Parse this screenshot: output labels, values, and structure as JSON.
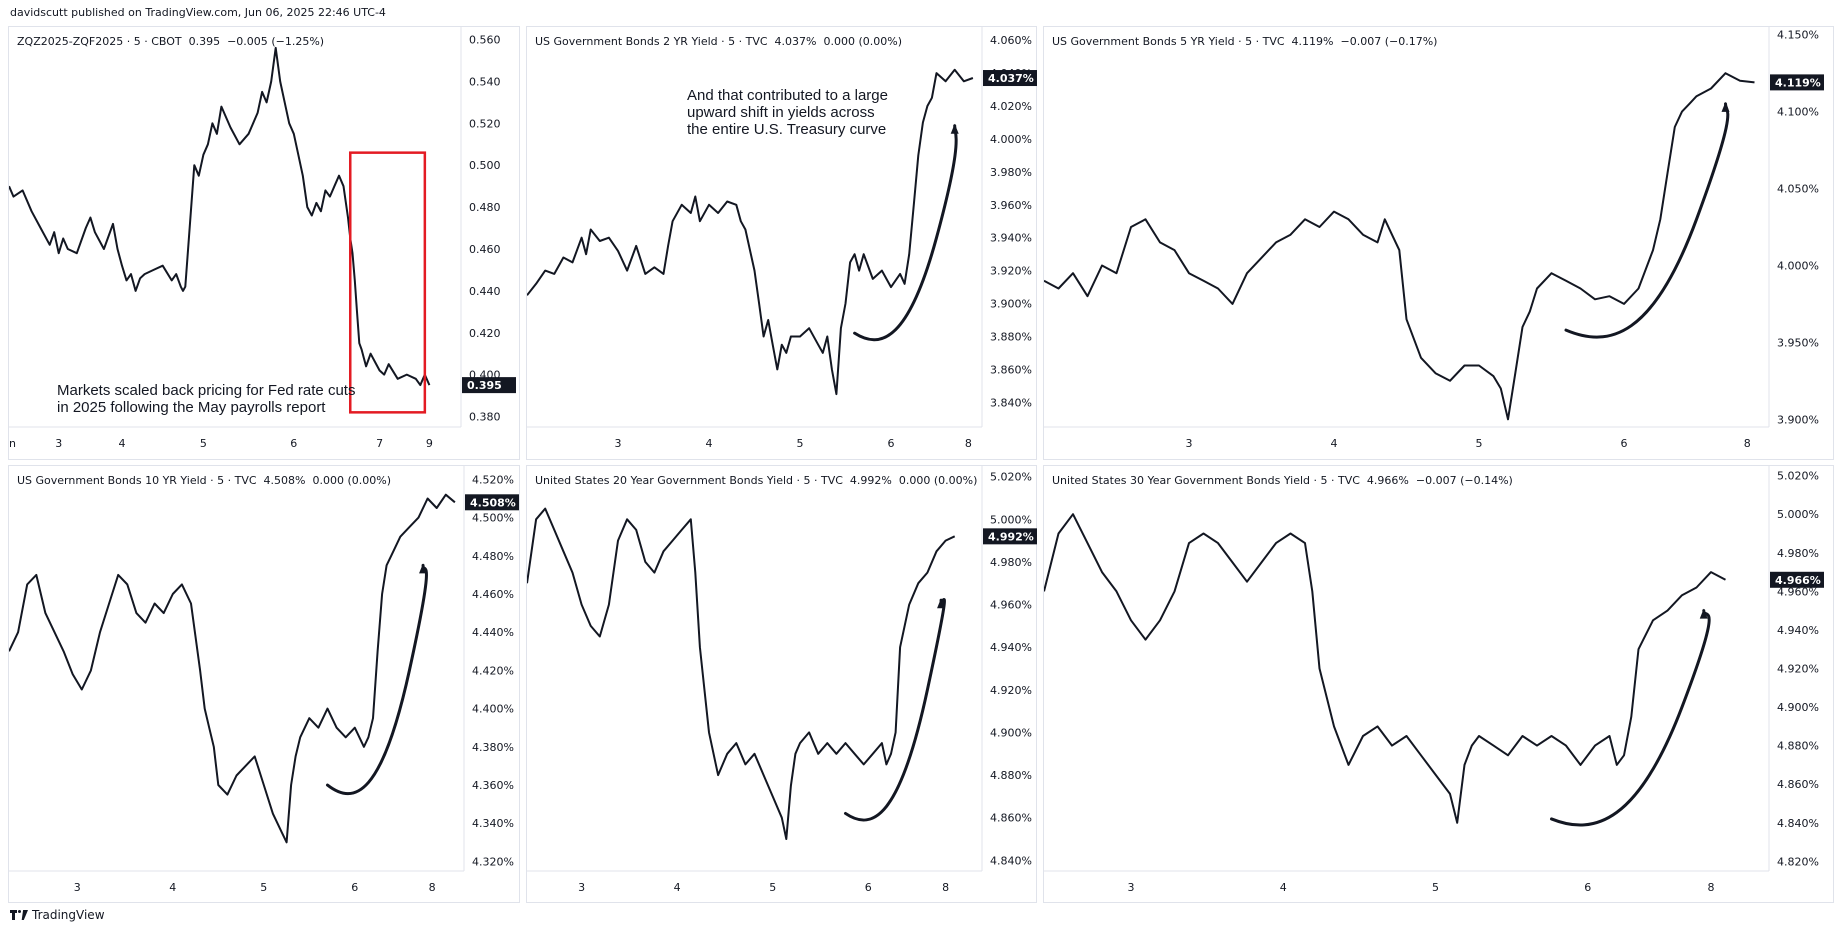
{
  "header": {
    "published": "davidscutt published on TradingView.com, Jun 06, 2025 22:46 UTC-4"
  },
  "footer": {
    "brand": "TradingView",
    "logo_icon": "tradingview-logo-icon"
  },
  "line_color": "#131722",
  "annotation_color": "#e31b23",
  "chart_data": [
    {
      "id": "zq",
      "type": "line",
      "legend": {
        "symbol": "ZQZ2025-ZQF2025",
        "interval": "5",
        "exchange": "CBOT",
        "last": "0.395",
        "change": "−0.005",
        "change_pct": "(−1.25%)"
      },
      "ylim": [
        0.375,
        0.566
      ],
      "y_ticks": [
        "0.560",
        "0.540",
        "0.520",
        "0.500",
        "0.480",
        "0.460",
        "0.440",
        "0.420",
        "0.400",
        "0.380"
      ],
      "y_tick_values": [
        0.56,
        0.54,
        0.52,
        0.5,
        0.48,
        0.46,
        0.44,
        0.42,
        0.4,
        0.38
      ],
      "x_ticks": [
        "un",
        "3",
        "4",
        "5",
        "6",
        "7",
        "9"
      ],
      "x_tick_pos": [
        0.0,
        0.11,
        0.25,
        0.43,
        0.63,
        0.82,
        0.93
      ],
      "last_label": "0.395",
      "x": [
        0,
        0.01,
        0.03,
        0.05,
        0.07,
        0.09,
        0.1,
        0.11,
        0.12,
        0.13,
        0.15,
        0.17,
        0.18,
        0.19,
        0.21,
        0.23,
        0.24,
        0.25,
        0.26,
        0.27,
        0.28,
        0.29,
        0.3,
        0.32,
        0.34,
        0.36,
        0.37,
        0.38,
        0.385,
        0.39,
        0.41,
        0.42,
        0.43,
        0.44,
        0.45,
        0.46,
        0.47,
        0.49,
        0.51,
        0.53,
        0.55,
        0.56,
        0.57,
        0.58,
        0.59,
        0.6,
        0.61,
        0.62,
        0.63,
        0.64,
        0.65,
        0.66,
        0.67,
        0.68,
        0.69,
        0.7,
        0.71,
        0.72,
        0.73,
        0.74,
        0.75,
        0.755,
        0.76,
        0.765,
        0.77,
        0.775,
        0.78,
        0.785,
        0.79,
        0.8,
        0.81,
        0.82,
        0.83,
        0.84,
        0.86,
        0.88,
        0.9,
        0.91,
        0.92,
        0.93
      ],
      "y": [
        0.49,
        0.485,
        0.488,
        0.478,
        0.47,
        0.462,
        0.468,
        0.458,
        0.465,
        0.46,
        0.458,
        0.47,
        0.475,
        0.468,
        0.46,
        0.472,
        0.46,
        0.452,
        0.445,
        0.448,
        0.44,
        0.446,
        0.448,
        0.45,
        0.452,
        0.445,
        0.448,
        0.442,
        0.44,
        0.442,
        0.5,
        0.495,
        0.505,
        0.51,
        0.52,
        0.515,
        0.528,
        0.518,
        0.51,
        0.515,
        0.525,
        0.535,
        0.53,
        0.54,
        0.556,
        0.54,
        0.53,
        0.52,
        0.515,
        0.505,
        0.495,
        0.48,
        0.476,
        0.482,
        0.478,
        0.488,
        0.485,
        0.49,
        0.495,
        0.49,
        0.475,
        0.465,
        0.458,
        0.445,
        0.43,
        0.415,
        0.412,
        0.408,
        0.404,
        0.41,
        0.406,
        0.402,
        0.4,
        0.405,
        0.398,
        0.4,
        0.398,
        0.395,
        0.4,
        0.395
      ],
      "box": {
        "x0": 0.755,
        "x1": 0.92,
        "y_top": 0.506,
        "y_bot": 0.382
      },
      "note": [
        "Markets scaled back pricing for Fed rate cuts",
        "in 2025 following the May payrolls report"
      ]
    },
    {
      "id": "us02",
      "type": "line",
      "legend": {
        "symbol": "US Government Bonds 2 YR Yield",
        "interval": "5",
        "exchange": "TVC",
        "last": "4.037%",
        "change": "0.000",
        "change_pct": "(0.00%)"
      },
      "ylim": [
        3.825,
        4.068
      ],
      "y_ticks": [
        "4.060%",
        "4.040%",
        "4.020%",
        "4.000%",
        "3.980%",
        "3.960%",
        "3.940%",
        "3.920%",
        "3.900%",
        "3.880%",
        "3.860%",
        "3.840%"
      ],
      "y_tick_values": [
        4.06,
        4.04,
        4.02,
        4.0,
        3.98,
        3.96,
        3.94,
        3.92,
        3.9,
        3.88,
        3.86,
        3.84
      ],
      "x_ticks": [
        "3",
        "4",
        "5",
        "6",
        "8"
      ],
      "x_tick_pos": [
        0.2,
        0.4,
        0.6,
        0.8,
        0.97
      ],
      "last_label": "4.037%",
      "x": [
        0,
        0.02,
        0.04,
        0.06,
        0.08,
        0.1,
        0.12,
        0.13,
        0.14,
        0.16,
        0.18,
        0.2,
        0.22,
        0.24,
        0.26,
        0.28,
        0.3,
        0.31,
        0.32,
        0.34,
        0.36,
        0.37,
        0.38,
        0.4,
        0.42,
        0.44,
        0.46,
        0.47,
        0.48,
        0.5,
        0.51,
        0.52,
        0.53,
        0.54,
        0.55,
        0.56,
        0.57,
        0.58,
        0.6,
        0.62,
        0.64,
        0.65,
        0.66,
        0.67,
        0.68,
        0.69,
        0.7,
        0.71,
        0.72,
        0.73,
        0.74,
        0.76,
        0.78,
        0.8,
        0.82,
        0.83,
        0.84,
        0.85,
        0.86,
        0.87,
        0.88,
        0.89,
        0.9,
        0.92,
        0.94,
        0.96,
        0.98
      ],
      "y": [
        3.905,
        3.912,
        3.92,
        3.918,
        3.928,
        3.925,
        3.94,
        3.93,
        3.945,
        3.938,
        3.94,
        3.932,
        3.92,
        3.935,
        3.918,
        3.922,
        3.918,
        3.935,
        3.95,
        3.96,
        3.955,
        3.965,
        3.95,
        3.96,
        3.955,
        3.962,
        3.96,
        3.95,
        3.945,
        3.92,
        3.9,
        3.88,
        3.89,
        3.875,
        3.86,
        3.875,
        3.87,
        3.88,
        3.88,
        3.885,
        3.875,
        3.87,
        3.88,
        3.86,
        3.845,
        3.885,
        3.9,
        3.925,
        3.93,
        3.92,
        3.93,
        3.915,
        3.92,
        3.91,
        3.918,
        3.912,
        3.93,
        3.96,
        3.99,
        4.01,
        4.02,
        4.025,
        4.04,
        4.035,
        4.042,
        4.035,
        4.037
      ],
      "curve": [
        [
          0.72,
          3.882
        ],
        [
          0.78,
          3.875
        ],
        [
          0.84,
          3.885
        ],
        [
          0.9,
          3.94
        ],
        [
          0.94,
          4.008
        ]
      ],
      "note": [
        "And that contributed to a large",
        "upward shift in yields across",
        "the entire U.S. Treasury curve"
      ]
    },
    {
      "id": "us05",
      "type": "line",
      "legend": {
        "symbol": "US Government Bonds 5 YR Yield",
        "interval": "5",
        "exchange": "TVC",
        "last": "4.119%",
        "change": "−0.007",
        "change_pct": "(−0.17%)"
      },
      "ylim": [
        3.895,
        4.155
      ],
      "y_ticks": [
        "4.150%",
        "4.100%",
        "4.050%",
        "4.000%",
        "3.950%",
        "3.900%"
      ],
      "y_tick_values": [
        4.15,
        4.1,
        4.05,
        4.0,
        3.95,
        3.9
      ],
      "x_ticks": [
        "3",
        "4",
        "5",
        "6",
        "8"
      ],
      "x_tick_pos": [
        0.2,
        0.4,
        0.6,
        0.8,
        0.97
      ],
      "last_label": "4.119%",
      "x": [
        0,
        0.02,
        0.04,
        0.06,
        0.08,
        0.1,
        0.12,
        0.14,
        0.16,
        0.18,
        0.2,
        0.22,
        0.24,
        0.26,
        0.28,
        0.3,
        0.32,
        0.34,
        0.36,
        0.38,
        0.4,
        0.42,
        0.44,
        0.46,
        0.47,
        0.48,
        0.49,
        0.5,
        0.52,
        0.54,
        0.56,
        0.58,
        0.6,
        0.62,
        0.63,
        0.64,
        0.65,
        0.66,
        0.67,
        0.68,
        0.7,
        0.72,
        0.74,
        0.76,
        0.78,
        0.8,
        0.82,
        0.84,
        0.85,
        0.86,
        0.87,
        0.88,
        0.89,
        0.9,
        0.92,
        0.94,
        0.96,
        0.98
      ],
      "y": [
        3.99,
        3.985,
        3.995,
        3.98,
        4.0,
        3.995,
        4.025,
        4.03,
        4.015,
        4.01,
        3.995,
        3.99,
        3.985,
        3.975,
        3.995,
        4.005,
        4.015,
        4.02,
        4.03,
        4.025,
        4.035,
        4.03,
        4.02,
        4.015,
        4.03,
        4.02,
        4.01,
        3.965,
        3.94,
        3.93,
        3.925,
        3.935,
        3.935,
        3.928,
        3.92,
        3.9,
        3.93,
        3.96,
        3.97,
        3.985,
        3.995,
        3.99,
        3.985,
        3.978,
        3.98,
        3.975,
        3.985,
        4.01,
        4.03,
        4.06,
        4.09,
        4.1,
        4.105,
        4.11,
        4.115,
        4.125,
        4.12,
        4.119
      ],
      "curve": [
        [
          0.72,
          3.958
        ],
        [
          0.78,
          3.95
        ],
        [
          0.84,
          3.96
        ],
        [
          0.9,
          4.03
        ],
        [
          0.94,
          4.105
        ]
      ]
    },
    {
      "id": "us10",
      "type": "line",
      "legend": {
        "symbol": "US Government Bonds 10 YR Yield",
        "interval": "5",
        "exchange": "TVC",
        "last": "4.508%",
        "change": "0.000",
        "change_pct": "(0.00%)"
      },
      "ylim": [
        4.315,
        4.527
      ],
      "y_ticks": [
        "4.520%",
        "4.500%",
        "4.480%",
        "4.460%",
        "4.440%",
        "4.420%",
        "4.400%",
        "4.380%",
        "4.360%",
        "4.340%",
        "4.320%"
      ],
      "y_tick_values": [
        4.52,
        4.5,
        4.48,
        4.46,
        4.44,
        4.42,
        4.4,
        4.38,
        4.36,
        4.34,
        4.32
      ],
      "x_ticks": [
        "3",
        "4",
        "5",
        "6",
        "8"
      ],
      "x_tick_pos": [
        0.15,
        0.36,
        0.56,
        0.76,
        0.93
      ],
      "last_label": "4.508%",
      "x": [
        0,
        0.02,
        0.04,
        0.06,
        0.08,
        0.1,
        0.12,
        0.14,
        0.16,
        0.18,
        0.2,
        0.22,
        0.24,
        0.26,
        0.28,
        0.3,
        0.32,
        0.34,
        0.36,
        0.38,
        0.4,
        0.42,
        0.43,
        0.44,
        0.45,
        0.46,
        0.48,
        0.5,
        0.52,
        0.54,
        0.56,
        0.58,
        0.6,
        0.61,
        0.62,
        0.63,
        0.64,
        0.66,
        0.68,
        0.7,
        0.72,
        0.74,
        0.76,
        0.78,
        0.79,
        0.8,
        0.81,
        0.82,
        0.83,
        0.84,
        0.86,
        0.88,
        0.9,
        0.92,
        0.94,
        0.96,
        0.98
      ],
      "y": [
        4.43,
        4.44,
        4.465,
        4.47,
        4.45,
        4.44,
        4.43,
        4.418,
        4.41,
        4.42,
        4.44,
        4.455,
        4.47,
        4.465,
        4.45,
        4.445,
        4.455,
        4.45,
        4.46,
        4.465,
        4.455,
        4.42,
        4.4,
        4.39,
        4.38,
        4.36,
        4.355,
        4.365,
        4.37,
        4.375,
        4.36,
        4.345,
        4.335,
        4.33,
        4.36,
        4.375,
        4.385,
        4.395,
        4.39,
        4.4,
        4.39,
        4.385,
        4.39,
        4.38,
        4.385,
        4.395,
        4.43,
        4.46,
        4.475,
        4.48,
        4.49,
        4.495,
        4.5,
        4.51,
        4.505,
        4.512,
        4.508
      ],
      "curve": [
        [
          0.7,
          4.36
        ],
        [
          0.76,
          4.352
        ],
        [
          0.82,
          4.36
        ],
        [
          0.88,
          4.42
        ],
        [
          0.91,
          4.475
        ]
      ]
    },
    {
      "id": "us20",
      "type": "line",
      "legend": {
        "symbol": "United States 20 Year Government Bonds Yield",
        "interval": "5",
        "exchange": "TVC",
        "last": "4.992%",
        "change": "0.000",
        "change_pct": "(0.00%)"
      },
      "ylim": [
        4.835,
        5.025
      ],
      "y_ticks": [
        "5.020%",
        "5.000%",
        "4.980%",
        "4.960%",
        "4.940%",
        "4.920%",
        "4.900%",
        "4.880%",
        "4.860%",
        "4.840%"
      ],
      "y_tick_values": [
        5.02,
        5.0,
        4.98,
        4.96,
        4.94,
        4.92,
        4.9,
        4.88,
        4.86,
        4.84
      ],
      "x_ticks": [
        "3",
        "4",
        "5",
        "6",
        "8"
      ],
      "x_tick_pos": [
        0.12,
        0.33,
        0.54,
        0.75,
        0.92
      ],
      "last_label": "4.992%",
      "x": [
        0,
        0.02,
        0.04,
        0.06,
        0.08,
        0.1,
        0.12,
        0.14,
        0.16,
        0.18,
        0.2,
        0.22,
        0.24,
        0.26,
        0.28,
        0.3,
        0.32,
        0.34,
        0.36,
        0.37,
        0.38,
        0.4,
        0.42,
        0.44,
        0.46,
        0.48,
        0.5,
        0.52,
        0.54,
        0.56,
        0.57,
        0.58,
        0.59,
        0.6,
        0.62,
        0.64,
        0.66,
        0.68,
        0.7,
        0.72,
        0.74,
        0.76,
        0.78,
        0.79,
        0.8,
        0.81,
        0.82,
        0.84,
        0.86,
        0.88,
        0.9,
        0.92,
        0.94
      ],
      "y": [
        4.97,
        5.0,
        5.005,
        4.995,
        4.985,
        4.975,
        4.96,
        4.95,
        4.945,
        4.96,
        4.99,
        5.0,
        4.995,
        4.98,
        4.975,
        4.985,
        4.99,
        4.995,
        5.0,
        4.975,
        4.94,
        4.9,
        4.88,
        4.89,
        4.895,
        4.885,
        4.89,
        4.88,
        4.87,
        4.86,
        4.85,
        4.875,
        4.89,
        4.895,
        4.9,
        4.89,
        4.895,
        4.89,
        4.895,
        4.89,
        4.885,
        4.89,
        4.895,
        4.885,
        4.89,
        4.9,
        4.94,
        4.96,
        4.97,
        4.975,
        4.985,
        4.99,
        4.992
      ],
      "curve": [
        [
          0.7,
          4.862
        ],
        [
          0.76,
          4.856
        ],
        [
          0.82,
          4.865
        ],
        [
          0.88,
          4.92
        ],
        [
          0.91,
          4.962
        ]
      ]
    },
    {
      "id": "us30",
      "type": "line",
      "legend": {
        "symbol": "United States 30 Year Government Bonds Yield",
        "interval": "5",
        "exchange": "TVC",
        "last": "4.966%",
        "change": "−0.007",
        "change_pct": "(−0.14%)"
      },
      "ylim": [
        4.815,
        5.025
      ],
      "y_ticks": [
        "5.020%",
        "5.000%",
        "4.980%",
        "4.960%",
        "4.940%",
        "4.920%",
        "4.900%",
        "4.880%",
        "4.860%",
        "4.840%",
        "4.820%"
      ],
      "y_tick_values": [
        5.02,
        5.0,
        4.98,
        4.96,
        4.94,
        4.92,
        4.9,
        4.88,
        4.86,
        4.84,
        4.82
      ],
      "x_ticks": [
        "3",
        "4",
        "5",
        "6",
        "8"
      ],
      "x_tick_pos": [
        0.12,
        0.33,
        0.54,
        0.75,
        0.92
      ],
      "last_label": "4.966%",
      "x": [
        0,
        0.02,
        0.04,
        0.06,
        0.08,
        0.1,
        0.12,
        0.14,
        0.16,
        0.18,
        0.2,
        0.22,
        0.24,
        0.26,
        0.28,
        0.3,
        0.32,
        0.34,
        0.36,
        0.37,
        0.38,
        0.4,
        0.42,
        0.44,
        0.46,
        0.48,
        0.5,
        0.52,
        0.54,
        0.56,
        0.57,
        0.58,
        0.59,
        0.6,
        0.62,
        0.64,
        0.66,
        0.68,
        0.7,
        0.72,
        0.74,
        0.76,
        0.78,
        0.79,
        0.8,
        0.81,
        0.82,
        0.84,
        0.86,
        0.88,
        0.9,
        0.92,
        0.94
      ],
      "y": [
        4.96,
        4.99,
        5.0,
        4.985,
        4.97,
        4.96,
        4.945,
        4.935,
        4.945,
        4.96,
        4.985,
        4.99,
        4.985,
        4.975,
        4.965,
        4.975,
        4.985,
        4.99,
        4.985,
        4.96,
        4.92,
        4.89,
        4.87,
        4.885,
        4.89,
        4.88,
        4.885,
        4.875,
        4.865,
        4.855,
        4.84,
        4.87,
        4.88,
        4.885,
        4.88,
        4.875,
        4.885,
        4.88,
        4.885,
        4.88,
        4.87,
        4.88,
        4.885,
        4.87,
        4.875,
        4.895,
        4.93,
        4.945,
        4.95,
        4.958,
        4.962,
        4.97,
        4.966
      ],
      "curve": [
        [
          0.7,
          4.842
        ],
        [
          0.76,
          4.836
        ],
        [
          0.82,
          4.846
        ],
        [
          0.88,
          4.9
        ],
        [
          0.91,
          4.95
        ]
      ]
    }
  ]
}
